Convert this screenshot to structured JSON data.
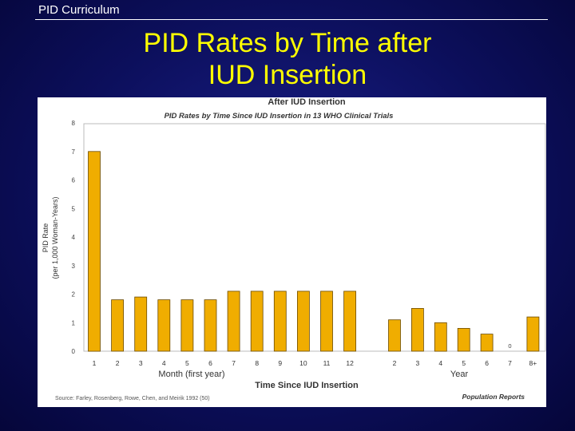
{
  "header": {
    "label": "PID Curriculum"
  },
  "slide": {
    "title_line1": "PID Rates by Time after",
    "title_line2": "IUD Insertion"
  },
  "colors": {
    "bar": "#f0ad00",
    "bar_stroke": "#6b4a00",
    "title": "#ffff00",
    "background": "#0c0f5c"
  },
  "chart_data": {
    "type": "bar",
    "title": "After IUD Insertion",
    "subtitle": "PID Rates by Time Since IUD Insertion in 13 WHO Clinical Trials",
    "ylabel_line1": "PID Rate",
    "ylabel_line2": "(per 1,000 Woman-Years)",
    "xlabel": "Time Since IUD Insertion",
    "ylim": [
      0,
      8
    ],
    "yticks": [
      "0",
      "1",
      "2",
      "3",
      "4",
      "5",
      "6",
      "7",
      "8"
    ],
    "groups": [
      {
        "label": "Month (first year)",
        "categories": [
          "1",
          "2",
          "3",
          "4",
          "5",
          "6",
          "7",
          "8",
          "9",
          "10",
          "11",
          "12"
        ],
        "values": [
          7.0,
          1.8,
          1.9,
          1.8,
          1.8,
          1.8,
          2.1,
          2.1,
          2.1,
          2.1,
          2.1,
          2.1
        ]
      },
      {
        "label": "Year",
        "categories": [
          "2",
          "3",
          "4",
          "5",
          "6",
          "7",
          "8+"
        ],
        "values": [
          1.1,
          1.5,
          1.0,
          0.8,
          0.6,
          0,
          1.2
        ],
        "value_labels": [
          "",
          "",
          "",
          "",
          "",
          "0",
          ""
        ]
      }
    ],
    "source": "Source: Farley, Rosenberg, Rowe, Chen, and Meirik 1992 (50)",
    "publisher": "Population Reports",
    "grid": false
  }
}
